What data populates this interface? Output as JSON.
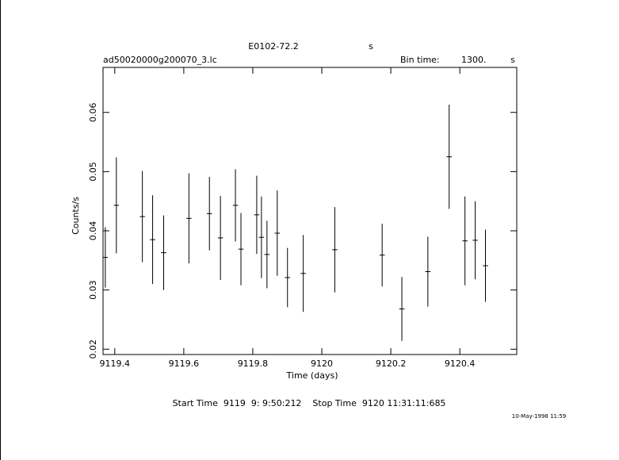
{
  "chart_data": {
    "type": "errorbar",
    "title": "E0102-72.2",
    "title_unit": "s",
    "file_name": "ad50020000g200070_3.lc",
    "bin_time_label": "Bin time:",
    "bin_time": "1300.",
    "bin_time_unit": "s",
    "x_label": "Time (days)",
    "y_label": "Counts/s",
    "footer": "Start Time  9119  9: 9:50:212    Stop Time  9120 11:31:11:685",
    "date": "10-May-1998 11:59",
    "color": "#000000",
    "xlim": [
      9119.366,
      9120.565
    ],
    "ylim": [
      0.0191,
      0.0676
    ],
    "xticks": [
      9119.4,
      9119.6,
      9119.8,
      9120,
      9120.2,
      9120.4
    ],
    "yticks": [
      0.02,
      0.03,
      0.04,
      0.05,
      0.06
    ],
    "series": [
      {
        "x": [
          9119.3726,
          9119.4046,
          9119.48,
          9119.5097,
          9119.5417,
          9119.6149,
          9119.6743,
          9119.7063,
          9119.7497,
          9119.7657,
          9119.8114,
          9119.8251,
          9119.8411,
          9119.8709,
          9119.9006,
          9119.9463,
          9120.0377,
          9120.1749,
          9120.232,
          9120.3074,
          9120.3691,
          9120.4149,
          9120.4446,
          9120.4743
        ],
        "values": [
          0.0355,
          0.0443,
          0.0424,
          0.0385,
          0.0363,
          0.0421,
          0.0429,
          0.0388,
          0.0443,
          0.0369,
          0.0427,
          0.0389,
          0.036,
          0.0396,
          0.0321,
          0.0328,
          0.0368,
          0.0359,
          0.0268,
          0.0331,
          0.0525,
          0.0383,
          0.0384,
          0.0341
        ],
        "errors": [
          0.0051,
          0.0081,
          0.0077,
          0.0075,
          0.0063,
          0.0076,
          0.0062,
          0.0071,
          0.0061,
          0.0061,
          0.0066,
          0.0069,
          0.0057,
          0.0072,
          0.005,
          0.0065,
          0.0072,
          0.0053,
          0.0054,
          0.0059,
          0.0088,
          0.0075,
          0.0066,
          0.0061
        ],
        "xerr": 0.0075
      }
    ]
  }
}
